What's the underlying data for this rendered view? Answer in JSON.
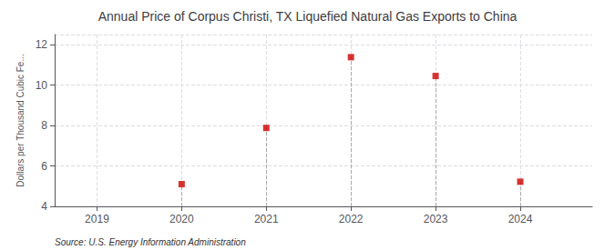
{
  "chart_data": {
    "type": "scatter",
    "title": "Annual Price of Corpus Christi, TX Liquefied Natural Gas Exports to China",
    "ylabel": "Dollars per Thousand Cubic Fe...",
    "annotations": [
      "Source: U.S. Energy Information Administration"
    ],
    "x": [
      2020,
      2021,
      2022,
      2023,
      2024
    ],
    "values": [
      5.1,
      7.88,
      11.38,
      10.45,
      5.22
    ],
    "xlim": [
      2018.5,
      2024.85
    ],
    "xticks": [
      2019,
      2020,
      2021,
      2022,
      2023,
      2024
    ],
    "ylim": [
      4,
      12.5
    ],
    "yticks": [
      4,
      6,
      8,
      10,
      12
    ],
    "color": "#cc0000",
    "marker": "square",
    "grid": true
  }
}
